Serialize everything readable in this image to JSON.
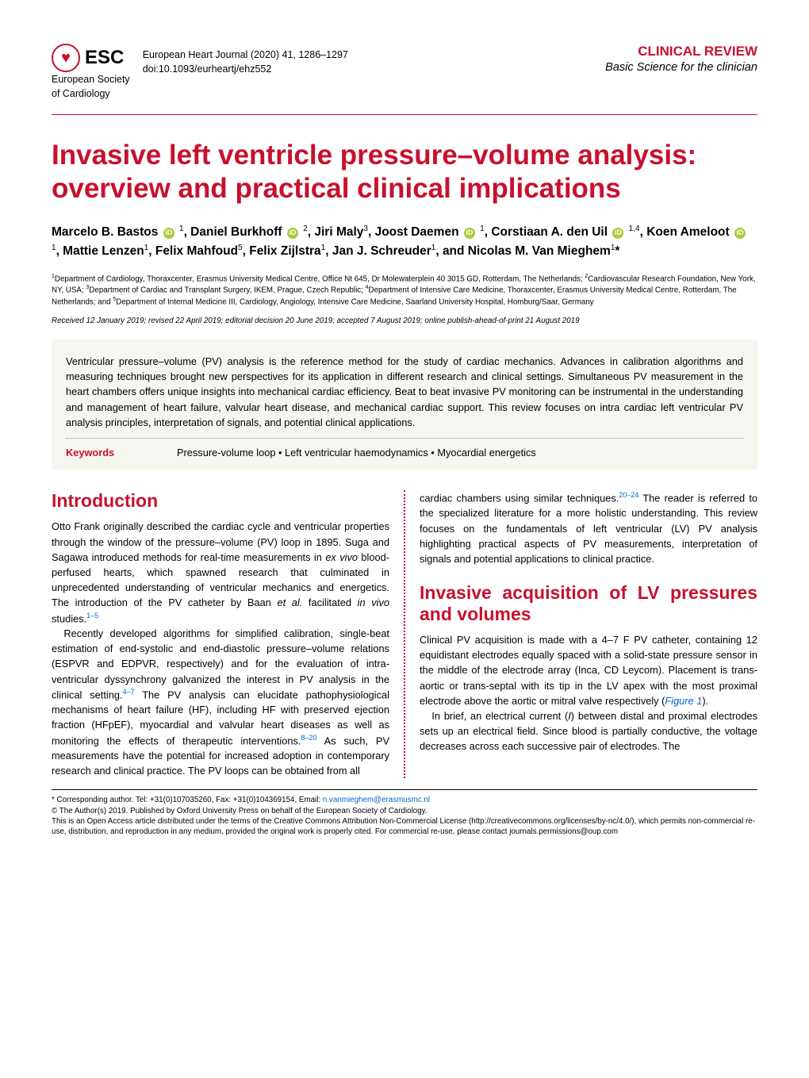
{
  "header": {
    "society_abbr": "ESC",
    "society_line1": "European Society",
    "society_line2": "of Cardiology",
    "journal": "European Heart Journal (2020) 41, 1286–1297",
    "doi": "doi:10.1093/eurheartj/ehz552",
    "review_label": "CLINICAL REVIEW",
    "review_sub": "Basic Science for the clinician"
  },
  "title": "Invasive left ventricle pressure–volume analysis: overview and practical clinical implications",
  "authors_html": "Marcelo B. Bastos <span class='orcid'>iD</span> <sup>1</sup>, Daniel Burkhoff <span class='orcid'>iD</span> <sup>2</sup>, Jiri Maly<sup>3</sup>, Joost Daemen <span class='orcid'>iD</span> <sup>1</sup>, Corstiaan A. den Uil <span class='orcid'>iD</span> <sup>1,4</sup>, Koen Ameloot <span class='orcid'>iD</span> <sup>1</sup>, Mattie Lenzen<sup>1</sup>, Felix Mahfoud<sup>5</sup>, Felix Zijlstra<sup>1</sup>, Jan J. Schreuder<sup>1</sup>, and Nicolas M. Van Mieghem<sup>1</sup>*",
  "affiliations": "<sup>1</sup>Department of Cardiology, Thoraxcenter, Erasmus University Medical Centre, Office Nt 645, Dr Molewaterplein 40 3015 GD, Rotterdam, The Netherlands; <sup>2</sup>Cardiovascular Research Foundation, New York, NY, USA; <sup>3</sup>Department of Cardiac and Transplant Surgery, IKEM, Prague, Czech Republic; <sup>4</sup>Department of Intensive Care Medicine, Thoraxcenter, Erasmus University Medical Centre, Rotterdam, The Netherlands; and <sup>5</sup>Department of Internal Medicine III, Cardiology, Angiology, Intensive Care Medicine, Saarland University Hospital, Homburg/Saar, Germany",
  "received": "Received 12 January 2019; revised 22 April 2019; editorial decision 20 June 2019; accepted 7 August 2019; online publish-ahead-of-print 21 August 2019",
  "abstract": "Ventricular pressure–volume (PV) analysis is the reference method for the study of cardiac mechanics. Advances in calibration algorithms and measuring techniques brought new perspectives for its application in different research and clinical settings. Simultaneous PV measurement in the heart chambers offers unique insights into mechanical cardiac efficiency. Beat to beat invasive PV monitoring can be instrumental in the understanding and management of heart failure, valvular heart disease, and mechanical cardiac support. This review focuses on intra cardiac left ventricular PV analysis principles, interpretation of signals, and potential clinical applications.",
  "keywords_label": "Keywords",
  "keywords": "Pressure-volume loop • Left ventricular haemodynamics • Myocardial energetics",
  "sections": {
    "intro_title": "Introduction",
    "intro_p1_html": "Otto Frank originally described the cardiac cycle and ventricular properties through the window of the pressure–volume (PV) loop in 1895. Suga and Sagawa introduced methods for real-time measurements in <i>ex vivo</i> blood-perfused hearts, which spawned research that culminated in unprecedented understanding of ventricular mechanics and energetics. The introduction of the PV catheter by Baan <i>et al.</i> facilitated <i>in vivo</i> studies.<span class='ref'>1–5</span>",
    "intro_p2_html": "Recently developed algorithms for simplified calibration, single-beat estimation of end-systolic and end-diastolic pressure–volume relations (ESPVR and EDPVR, respectively) and for the evaluation of intra-ventricular dyssynchrony galvanized the interest in PV analysis in the clinical setting.<span class='ref'>4–7</span> The PV analysis can elucidate pathophysiological mechanisms of heart failure (HF), including HF with preserved ejection fraction (HFpEF), myocardial and valvular heart diseases as well as monitoring the effects of therapeutic interventions.<span class='ref'>8–20</span> As such, PV measurements have the potential for increased adoption in contemporary research and clinical practice. The PV loops can be obtained from all",
    "intro_p3_html": "cardiac chambers using similar techniques.<span class='ref'>20–24</span> The reader is referred to the specialized literature for a more holistic understanding. This review focuses on the fundamentals of left ventricular (LV) PV analysis highlighting practical aspects of PV measurements, interpretation of signals and potential applications to clinical practice.",
    "acq_title": "Invasive acquisition of LV pressures and volumes",
    "acq_p1_html": "Clinical PV acquisition is made with a 4–7 F PV catheter, containing 12 equidistant electrodes equally spaced with a solid-state pressure sensor in the middle of the electrode array (Inca, CD Leycom). Placement is trans-aortic or trans-septal with its tip in the LV apex with the most proximal electrode above the aortic or mitral valve respectively (<span class='figref'>Figure 1</span>).",
    "acq_p2_html": "In brief, an electrical current (<i>I</i>) between distal and proximal electrodes sets up an electrical field. Since blood is partially conductive, the voltage decreases across each successive pair of electrodes. The"
  },
  "footer": {
    "corresponding": "* Corresponding author. Tel: +31(0)107035260, Fax: +31(0)104369154, Email: ",
    "email": "n.vanmieghem@erasmusmc.nl",
    "copyright": "© The Author(s) 2019. Published by Oxford University Press on behalf of the European Society of Cardiology.",
    "license": "This is an Open Access article distributed under the terms of the Creative Commons Attribution Non-Commercial License (http://creativecommons.org/licenses/by-nc/4.0/), which permits non-commercial re-use, distribution, and reproduction in any medium, provided the original work is properly cited. For commercial re-use, please contact journals.permissions@oup.com"
  },
  "colors": {
    "accent": "#c8102e",
    "link": "#0066cc",
    "abstract_bg": "#f7f5ef",
    "orcid": "#a6ce39"
  }
}
